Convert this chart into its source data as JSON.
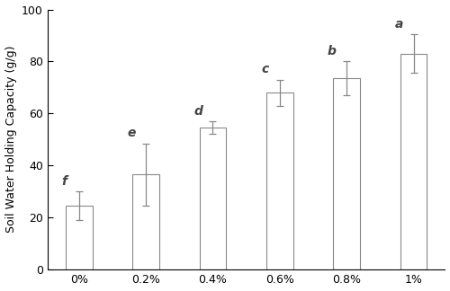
{
  "categories": [
    "0%",
    "0.2%",
    "0.4%",
    "0.6%",
    "0.8%",
    "1%"
  ],
  "values": [
    24.5,
    36.5,
    54.5,
    68.0,
    73.5,
    83.0
  ],
  "errors": [
    5.5,
    12.0,
    2.5,
    5.0,
    6.5,
    7.5
  ],
  "letters": [
    "f",
    "e",
    "d",
    "c",
    "b",
    "a"
  ],
  "bar_color": "#ffffff",
  "bar_edgecolor": "#888888",
  "error_color": "#888888",
  "ylabel": "Soil Water Holding Capacity (g/g)",
  "ylim": [
    0,
    100
  ],
  "yticks": [
    0,
    20,
    40,
    60,
    80,
    100
  ],
  "bar_width": 0.4,
  "letter_fontsize": 10,
  "tick_fontsize": 9,
  "ylabel_fontsize": 9,
  "figure_width": 5.0,
  "figure_height": 3.24,
  "dpi": 100
}
